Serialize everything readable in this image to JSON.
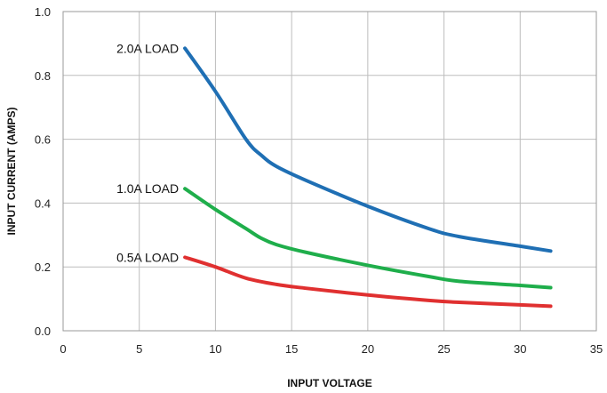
{
  "chart_data": {
    "type": "line",
    "xlabel": "INPUT VOLTAGE",
    "ylabel": "INPUT CURRENT (AMPS)",
    "xlim": [
      0,
      35
    ],
    "ylim": [
      0,
      1.0
    ],
    "x_ticks": [
      0,
      5,
      10,
      15,
      20,
      25,
      30,
      35
    ],
    "x_tick_labels": [
      "0",
      "5",
      "10",
      "15",
      "20",
      "25",
      "30",
      "35"
    ],
    "y_ticks": [
      0,
      0.2,
      0.4,
      0.6,
      0.8,
      1.0
    ],
    "y_tick_labels": [
      "0.0",
      "0.2",
      "0.4",
      "0.6",
      "0.8",
      "1.0"
    ],
    "grid": true,
    "series": [
      {
        "name": "2.0A LOAD",
        "color": "#1f6fb4",
        "x": [
          8,
          10,
          12,
          13,
          14,
          16,
          20,
          24,
          26,
          30,
          32
        ],
        "y": [
          0.885,
          0.75,
          0.6,
          0.55,
          0.515,
          0.47,
          0.39,
          0.32,
          0.295,
          0.265,
          0.25
        ]
      },
      {
        "name": "1.0A LOAD",
        "color": "#1fae4b",
        "x": [
          8,
          10,
          12,
          13,
          14,
          16,
          20,
          24,
          26,
          30,
          32
        ],
        "y": [
          0.445,
          0.38,
          0.32,
          0.29,
          0.27,
          0.245,
          0.205,
          0.17,
          0.155,
          0.142,
          0.135
        ]
      },
      {
        "name": "0.5A LOAD",
        "color": "#e03030",
        "x": [
          8,
          10,
          12,
          14,
          16,
          20,
          24,
          26,
          30,
          32
        ],
        "y": [
          0.23,
          0.2,
          0.165,
          0.145,
          0.133,
          0.112,
          0.095,
          0.089,
          0.081,
          0.077
        ]
      }
    ]
  }
}
